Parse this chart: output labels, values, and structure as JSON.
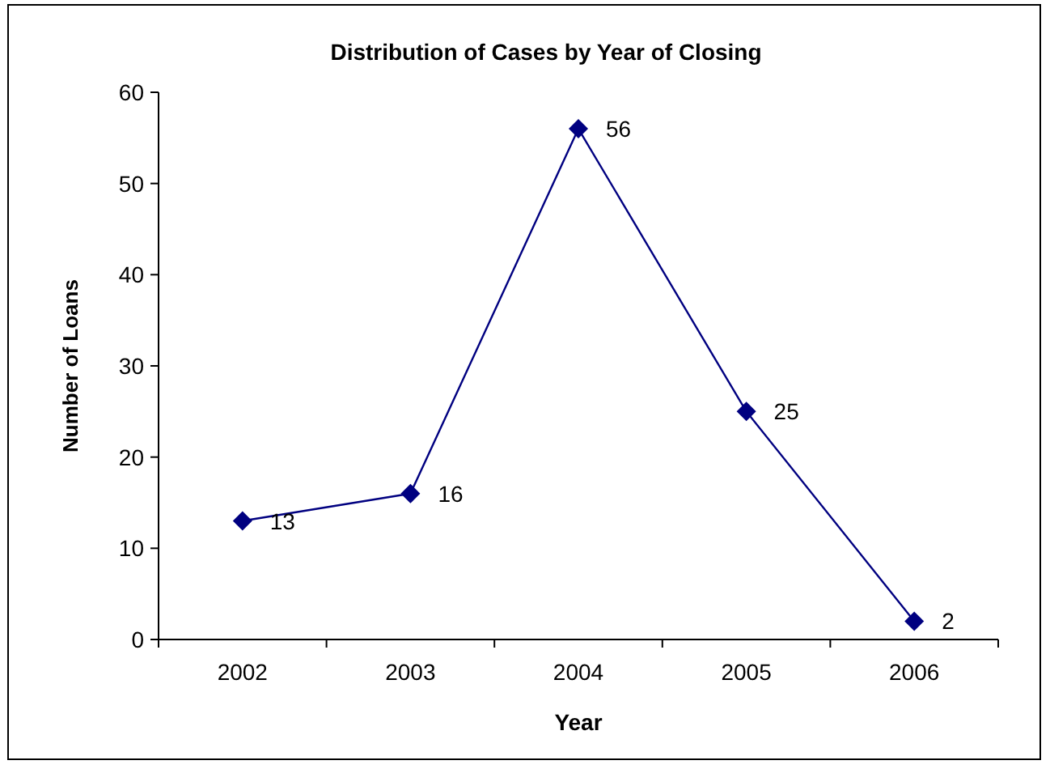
{
  "chart_data": {
    "type": "line",
    "title": "Distribution of Cases by Year of Closing",
    "xlabel": "Year",
    "ylabel": "Number of Loans",
    "categories": [
      "2002",
      "2003",
      "2004",
      "2005",
      "2006"
    ],
    "series": [
      {
        "color": "#000080",
        "values": [
          13,
          16,
          56,
          25,
          2
        ]
      }
    ],
    "ylim": [
      0,
      60
    ],
    "yticks": [
      0,
      10,
      20,
      30,
      40,
      50,
      60
    ],
    "grid": false,
    "marker": "diamond",
    "line_style": "solid",
    "data_labels": true
  }
}
